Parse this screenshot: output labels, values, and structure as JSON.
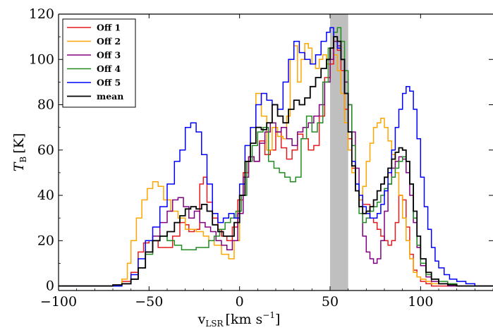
{
  "chart_data": {
    "type": "line",
    "step": true,
    "xlabel_main": "v",
    "xlabel_sub": "LSR",
    "xlabel_units": "[km s",
    "xlabel_exp": "−1",
    "xlabel_close": "]",
    "ylabel_main": "T",
    "ylabel_sub": "B",
    "ylabel_units": "[K]",
    "xlim": [
      -100,
      140
    ],
    "ylim": [
      -2,
      120
    ],
    "xticks": [
      -100,
      -50,
      0,
      50,
      100
    ],
    "yticks": [
      0,
      20,
      40,
      60,
      80,
      100,
      120
    ],
    "xtick_labels": [
      "−100",
      "−50",
      "0",
      "50",
      "100"
    ],
    "ytick_labels": [
      "0",
      "20",
      "40",
      "60",
      "80",
      "100",
      "120"
    ],
    "shaded_region": [
      50,
      60
    ],
    "grid": false,
    "legend_position": "top-left",
    "series": [
      {
        "name": "Off 1",
        "color": "#e41a1c",
        "width": 1.5,
        "x": [
          -100,
          -70,
          -65,
          -60,
          -56,
          -53,
          -50,
          -45,
          -40,
          -37,
          -33,
          -30,
          -28,
          -25,
          -22,
          -20,
          -18,
          -15,
          -12,
          -10,
          -7,
          -4,
          -1,
          2,
          5,
          8,
          11,
          14,
          17,
          20,
          23,
          26,
          29,
          32,
          35,
          38,
          41,
          44,
          47,
          50,
          52,
          54,
          56,
          58,
          60,
          62,
          64,
          66,
          68,
          70,
          72,
          74,
          76,
          78,
          80,
          82,
          84,
          86,
          88,
          90,
          92,
          94,
          96,
          98,
          100,
          103,
          106,
          110,
          115,
          120,
          130,
          140
        ],
        "y": [
          0,
          0,
          2,
          6,
          15,
          19,
          20,
          17,
          17,
          22,
          28,
          27,
          24,
          25,
          45,
          48,
          37,
          30,
          25,
          22,
          20,
          26,
          38,
          50,
          57,
          55,
          64,
          58,
          60,
          68,
          61,
          56,
          60,
          67,
          65,
          60,
          62,
          75,
          92,
          98,
          110,
          104,
          95,
          78,
          65,
          52,
          42,
          38,
          36,
          36,
          30,
          28,
          25,
          22,
          20,
          18,
          20,
          28,
          40,
          38,
          26,
          14,
          7,
          4,
          2,
          1,
          0,
          0,
          0,
          0,
          0,
          0
        ]
      },
      {
        "name": "Off 2",
        "color": "#ffa500",
        "width": 1.5,
        "x": [
          -100,
          -70,
          -65,
          -62,
          -60,
          -57,
          -54,
          -51,
          -48,
          -45,
          -42,
          -38,
          -34,
          -30,
          -27,
          -24,
          -20,
          -17,
          -14,
          -10,
          -6,
          -3,
          0,
          3,
          6,
          9,
          12,
          15,
          18,
          21,
          24,
          26,
          28,
          30,
          32,
          34,
          36,
          38,
          40,
          42,
          44,
          46,
          48,
          50,
          52,
          54,
          56,
          58,
          60,
          62,
          64,
          66,
          68,
          70,
          72,
          74,
          76,
          78,
          80,
          82,
          84,
          86,
          88,
          90,
          92,
          94,
          96,
          98,
          100,
          103,
          106,
          110,
          115,
          120,
          130,
          140
        ],
        "y": [
          0,
          0,
          3,
          10,
          20,
          30,
          38,
          43,
          46,
          44,
          38,
          33,
          30,
          25,
          25,
          24,
          22,
          20,
          18,
          14,
          12,
          20,
          40,
          55,
          70,
          85,
          75,
          60,
          70,
          66,
          65,
          75,
          100,
          106,
          90,
          100,
          107,
          105,
          98,
          96,
          100,
          102,
          98,
          105,
          102,
          95,
          85,
          72,
          60,
          50,
          42,
          38,
          44,
          55,
          63,
          70,
          72,
          74,
          70,
          64,
          58,
          50,
          40,
          30,
          20,
          12,
          6,
          4,
          3,
          2,
          1,
          1,
          0,
          0,
          0,
          0
        ]
      },
      {
        "name": "Off 3",
        "color": "#800080",
        "width": 1.5,
        "x": [
          -100,
          -70,
          -65,
          -60,
          -56,
          -52,
          -48,
          -44,
          -40,
          -37,
          -34,
          -31,
          -28,
          -25,
          -22,
          -19,
          -16,
          -13,
          -10,
          -7,
          -4,
          -1,
          2,
          5,
          8,
          11,
          14,
          17,
          20,
          23,
          26,
          29,
          32,
          35,
          38,
          41,
          44,
          47,
          50,
          52,
          54,
          56,
          58,
          60,
          62,
          64,
          66,
          68,
          70,
          72,
          74,
          76,
          78,
          80,
          82,
          84,
          86,
          88,
          90,
          92,
          94,
          96,
          98,
          100,
          103,
          106,
          110,
          115,
          120,
          130,
          140
        ],
        "y": [
          0,
          0,
          1,
          3,
          8,
          15,
          22,
          28,
          33,
          38,
          39,
          35,
          30,
          33,
          28,
          26,
          24,
          20,
          18,
          16,
          20,
          32,
          48,
          57,
          55,
          63,
          68,
          72,
          68,
          70,
          65,
          62,
          68,
          70,
          72,
          75,
          80,
          90,
          100,
          108,
          106,
          100,
          90,
          80,
          68,
          52,
          35,
          22,
          15,
          12,
          10,
          12,
          20,
          33,
          45,
          52,
          55,
          57,
          56,
          50,
          40,
          28,
          17,
          9,
          4,
          2,
          1,
          0,
          0,
          0,
          0
        ]
      },
      {
        "name": "Off 4",
        "color": "#228b22",
        "width": 1.5,
        "x": [
          -100,
          -70,
          -65,
          -60,
          -56,
          -52,
          -48,
          -44,
          -40,
          -36,
          -32,
          -28,
          -24,
          -20,
          -17,
          -14,
          -11,
          -8,
          -5,
          -2,
          1,
          4,
          7,
          10,
          13,
          16,
          19,
          22,
          25,
          28,
          31,
          34,
          37,
          40,
          43,
          46,
          49,
          52,
          54,
          56,
          58,
          60,
          62,
          64,
          66,
          68,
          70,
          72,
          74,
          76,
          78,
          80,
          82,
          84,
          86,
          88,
          90,
          92,
          94,
          96,
          98,
          100,
          103,
          106,
          110,
          115,
          120,
          130,
          140
        ],
        "y": [
          0,
          0,
          1,
          3,
          8,
          14,
          20,
          22,
          20,
          18,
          16,
          16,
          17,
          17,
          20,
          22,
          25,
          28,
          30,
          33,
          40,
          55,
          62,
          68,
          70,
          55,
          52,
          50,
          48,
          46,
          48,
          65,
          75,
          68,
          72,
          90,
          105,
          112,
          114,
          108,
          95,
          80,
          62,
          45,
          32,
          28,
          30,
          33,
          35,
          37,
          40,
          43,
          45,
          48,
          52,
          55,
          57,
          55,
          45,
          30,
          18,
          10,
          5,
          3,
          2,
          1,
          0,
          0,
          0
        ]
      },
      {
        "name": "Off 5",
        "color": "#0000ff",
        "width": 1.5,
        "x": [
          -100,
          -70,
          -65,
          -60,
          -56,
          -52,
          -48,
          -44,
          -40,
          -36,
          -33,
          -30,
          -27,
          -24,
          -21,
          -18,
          -15,
          -12,
          -9,
          -6,
          -3,
          0,
          3,
          6,
          9,
          12,
          15,
          18,
          21,
          24,
          27,
          30,
          33,
          36,
          39,
          42,
          45,
          48,
          50,
          52,
          54,
          56,
          58,
          60,
          62,
          64,
          66,
          68,
          70,
          72,
          74,
          76,
          78,
          80,
          82,
          84,
          86,
          88,
          90,
          92,
          94,
          96,
          98,
          100,
          102,
          104,
          106,
          108,
          110,
          113,
          116,
          120,
          125,
          130,
          140
        ],
        "y": [
          0,
          0,
          1,
          5,
          12,
          20,
          26,
          35,
          45,
          55,
          60,
          70,
          72,
          68,
          58,
          45,
          32,
          28,
          30,
          32,
          30,
          45,
          62,
          70,
          80,
          85,
          82,
          80,
          78,
          90,
          100,
          108,
          103,
          100,
          98,
          102,
          108,
          112,
          114,
          110,
          105,
          100,
          85,
          68,
          55,
          45,
          40,
          35,
          32,
          30,
          30,
          32,
          36,
          42,
          50,
          60,
          70,
          78,
          85,
          88,
          86,
          78,
          65,
          48,
          35,
          25,
          17,
          11,
          8,
          5,
          3,
          2,
          1,
          0,
          0
        ]
      },
      {
        "name": "mean",
        "color": "#000000",
        "width": 1.8,
        "x": [
          -100,
          -80,
          -70,
          -65,
          -60,
          -56,
          -52,
          -48,
          -44,
          -40,
          -36,
          -33,
          -30,
          -27,
          -24,
          -21,
          -18,
          -15,
          -12,
          -9,
          -6,
          -3,
          0,
          3,
          6,
          9,
          12,
          15,
          18,
          21,
          24,
          27,
          30,
          33,
          36,
          39,
          42,
          45,
          48,
          50,
          52,
          54,
          56,
          58,
          60,
          62,
          64,
          66,
          68,
          70,
          72,
          74,
          76,
          78,
          80,
          82,
          84,
          86,
          88,
          90,
          92,
          94,
          96,
          98,
          100,
          103,
          106,
          110,
          115,
          120,
          130,
          140
        ],
        "y": [
          0,
          0,
          0.5,
          1,
          3,
          8,
          15,
          20,
          22,
          24,
          28,
          31,
          34,
          35,
          34,
          36,
          33,
          27,
          24,
          22,
          22,
          28,
          40,
          55,
          63,
          70,
          69,
          72,
          80,
          75,
          72,
          78,
          82,
          80,
          83,
          88,
          92,
          96,
          100,
          105,
          110,
          108,
          100,
          85,
          68,
          53,
          42,
          35,
          32,
          33,
          35,
          38,
          42,
          45,
          48,
          52,
          56,
          59,
          61,
          60,
          55,
          45,
          33,
          22,
          12,
          6,
          3,
          1,
          0.5,
          0,
          0,
          0
        ]
      }
    ]
  }
}
